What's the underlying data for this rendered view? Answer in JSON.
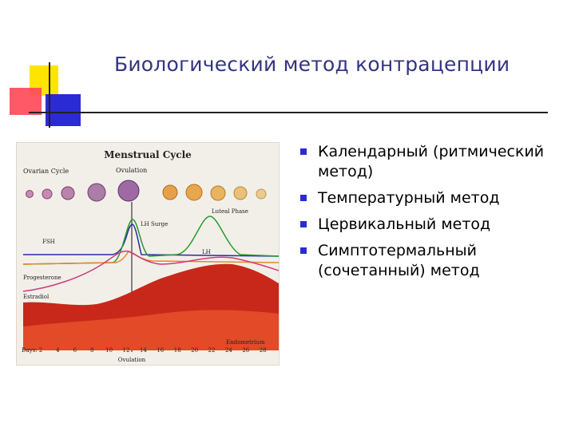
{
  "slide": {
    "title": "Биологический метод контрацепции",
    "accent_color": "#333580",
    "bullet_color": "#2b2bd6",
    "methods": [
      "Календарный (ритмический метод)",
      "Температурный метод",
      "Цервикальный метод",
      "Симптотермальный (сочетанный) метод"
    ]
  },
  "figure": {
    "title": "Menstrual Cycle",
    "labels": {
      "ovarian_cycle": "Ovarian Cycle",
      "ovulation_top": "Ovulation",
      "lh_surge": "LH Surge",
      "luteal_phase": "Luteal Phase",
      "fsh": "FSH",
      "lh": "LH",
      "progesterone": "Progesterone",
      "estradiol": "Estradiol",
      "endometrium": "Endometrium",
      "days": "Days:",
      "ovulation_bottom": "Ovulation"
    },
    "days": [
      "2",
      "4",
      "6",
      "8",
      "10",
      "12",
      "14",
      "16",
      "18",
      "20",
      "22",
      "24",
      "26",
      "28"
    ]
  }
}
